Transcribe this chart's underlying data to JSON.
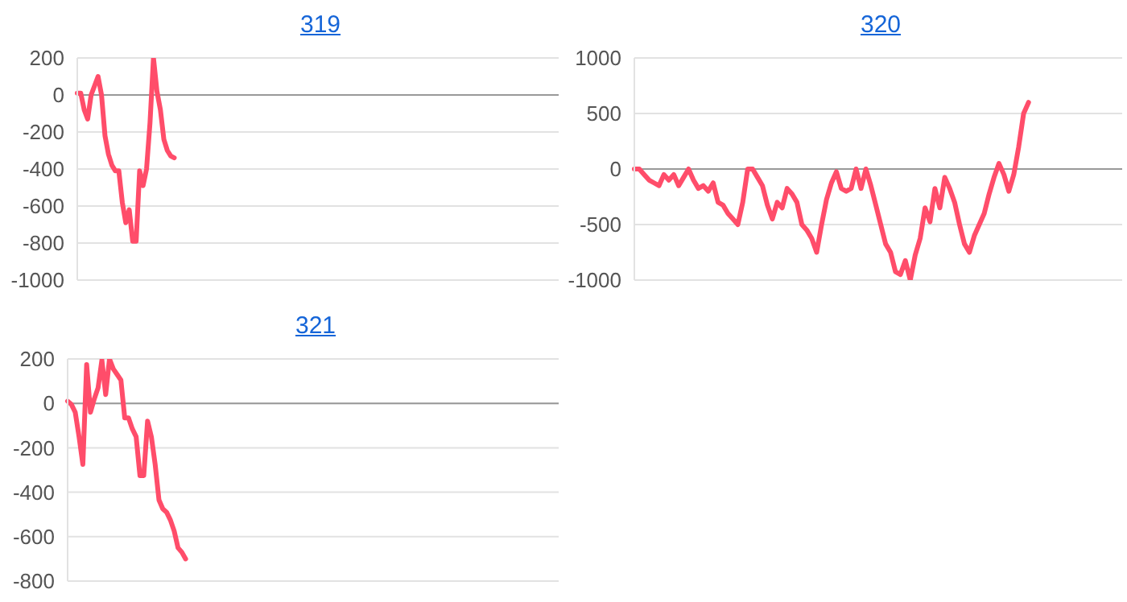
{
  "chart_data": [
    {
      "type": "line",
      "title": "319",
      "ylim": [
        -1000,
        200
      ],
      "yticks": [
        -1000,
        -800,
        -600,
        -400,
        -200,
        0,
        200
      ],
      "grid": "y",
      "tick_labels": "y",
      "legend": false,
      "marker": "none",
      "line_style": "solid",
      "ref_lines": [
        {
          "axis": "y",
          "value": 0,
          "color": "#999999"
        }
      ],
      "categories": [
        null,
        null,
        null,
        null,
        null,
        null,
        null,
        null,
        null,
        null,
        null,
        null,
        null,
        null,
        null,
        null,
        null,
        null,
        null,
        null,
        null,
        null,
        null,
        null,
        null,
        null,
        null,
        null,
        null,
        null,
        null,
        null,
        null,
        null,
        null,
        null,
        null,
        null,
        null,
        null,
        null,
        null,
        null,
        null,
        null,
        null,
        null,
        null,
        null,
        null,
        null,
        null,
        null,
        null,
        null,
        null,
        null,
        null,
        null,
        null,
        null,
        null,
        null,
        null,
        null,
        null,
        null,
        null,
        null,
        null,
        null,
        null,
        null,
        null,
        null,
        null,
        null,
        null,
        null,
        null,
        null,
        null,
        null,
        null,
        null,
        null,
        null,
        null,
        null,
        null,
        null,
        null,
        null,
        null,
        null,
        null,
        null,
        null,
        null,
        null,
        null,
        null,
        null,
        null,
        null,
        null,
        null,
        null,
        null,
        null,
        null,
        null,
        null,
        null,
        null,
        null,
        null,
        null,
        null,
        null,
        null,
        null,
        null,
        null,
        null,
        null,
        null,
        null,
        null,
        null,
        null,
        null,
        null,
        null,
        null,
        null,
        null,
        null,
        null,
        null
      ],
      "series": [
        {
          "color": "#ff4d6a",
          "values": [
            10,
            10,
            -80,
            -130,
            0,
            50,
            100,
            0,
            -220,
            -320,
            -380,
            -410,
            -410,
            -580,
            -690,
            -620,
            -790,
            -790,
            -410,
            -490,
            -400,
            -150,
            200,
            20,
            -80,
            -240,
            -300,
            -330,
            -340,
            null,
            null,
            null,
            null,
            null,
            null,
            null,
            null,
            null,
            null,
            null,
            null,
            null,
            null,
            null,
            null,
            null,
            null,
            null,
            null,
            null,
            null,
            null,
            null,
            null,
            null,
            null,
            null,
            null,
            null,
            null,
            null,
            null,
            null,
            null,
            null,
            null,
            null,
            null,
            null,
            null,
            null,
            null,
            null,
            null,
            null,
            null,
            null,
            null,
            null,
            null,
            null,
            null,
            null,
            null,
            null,
            null,
            null,
            null,
            null,
            null,
            null,
            null,
            null,
            null,
            null,
            null,
            null,
            null,
            null,
            null,
            null,
            null,
            null,
            null,
            null,
            null,
            null,
            null,
            null,
            null,
            null,
            null,
            null,
            null,
            null,
            null,
            null,
            null,
            null,
            null,
            null,
            null,
            null,
            null,
            null,
            null,
            null,
            null,
            null,
            null,
            null,
            null,
            null,
            null,
            null,
            null,
            null,
            null,
            null,
            null
          ]
        }
      ]
    },
    {
      "type": "line",
      "title": "320",
      "ylim": [
        -1000,
        1000
      ],
      "yticks": [
        -1000,
        -500,
        0,
        500,
        1000
      ],
      "grid": "y",
      "tick_labels": "y",
      "legend": false,
      "marker": "none",
      "line_style": "solid",
      "ref_lines": [
        {
          "axis": "y",
          "value": 0,
          "color": "#999999"
        }
      ],
      "categories": [
        null,
        null,
        null,
        null,
        null,
        null,
        null,
        null,
        null,
        null,
        null,
        null,
        null,
        null,
        null,
        null,
        null,
        null,
        null,
        null,
        null,
        null,
        null,
        null,
        null,
        null,
        null,
        null,
        null,
        null,
        null,
        null,
        null,
        null,
        null,
        null,
        null,
        null,
        null,
        null,
        null,
        null,
        null,
        null,
        null,
        null,
        null,
        null,
        null,
        null,
        null,
        null,
        null,
        null,
        null,
        null,
        null,
        null,
        null,
        null,
        null,
        null,
        null,
        null,
        null,
        null,
        null,
        null,
        null,
        null,
        null,
        null,
        null,
        null,
        null,
        null,
        null,
        null,
        null,
        null,
        null,
        null,
        null,
        null,
        null,
        null,
        null,
        null,
        null,
        null,
        null,
        null,
        null,
        null,
        null,
        null,
        null,
        null,
        null,
        null
      ],
      "series": [
        {
          "color": "#ff4d6a",
          "values": [
            0,
            0,
            -50,
            -100,
            -125,
            -150,
            -50,
            -100,
            -50,
            -150,
            -75,
            0,
            -100,
            -175,
            -150,
            -200,
            -125,
            -300,
            -325,
            -400,
            -450,
            -500,
            -300,
            0,
            0,
            -75,
            -150,
            -325,
            -450,
            -300,
            -350,
            -175,
            -225,
            -300,
            -500,
            -550,
            -625,
            -750,
            -500,
            -275,
            -125,
            -25,
            -175,
            -200,
            -175,
            0,
            -175,
            0,
            -150,
            -325,
            -500,
            -675,
            -750,
            -925,
            -950,
            -825,
            -1000,
            -775,
            -625,
            -350,
            -475,
            -175,
            -350,
            -75,
            -175,
            -300,
            -500,
            -675,
            -750,
            -600,
            -500,
            -400,
            -225,
            -75,
            50,
            -50,
            -200,
            -50,
            200,
            500,
            600,
            null,
            null,
            null,
            null,
            null,
            null,
            null,
            null,
            null,
            null,
            null,
            null,
            null,
            null,
            null,
            null,
            null,
            null,
            null
          ]
        }
      ]
    },
    {
      "type": "line",
      "title": "321",
      "ylim": [
        -800,
        200
      ],
      "yticks": [
        -800,
        -600,
        -400,
        -200,
        0,
        200
      ],
      "grid": "y",
      "tick_labels": "y",
      "legend": false,
      "marker": "none",
      "line_style": "solid",
      "ref_lines": [
        {
          "axis": "y",
          "value": 0,
          "color": "#999999"
        }
      ],
      "categories": [
        null,
        null,
        null,
        null,
        null,
        null,
        null,
        null,
        null,
        null,
        null,
        null,
        null,
        null,
        null,
        null,
        null,
        null,
        null,
        null,
        null,
        null,
        null,
        null,
        null,
        null,
        null,
        null,
        null,
        null,
        null,
        null,
        null,
        null,
        null,
        null,
        null,
        null,
        null,
        null,
        null,
        null,
        null,
        null,
        null,
        null,
        null,
        null,
        null,
        null,
        null,
        null,
        null,
        null,
        null,
        null,
        null,
        null,
        null,
        null,
        null,
        null,
        null,
        null,
        null,
        null,
        null,
        null,
        null,
        null,
        null,
        null,
        null,
        null,
        null,
        null,
        null,
        null,
        null,
        null,
        null,
        null,
        null,
        null,
        null,
        null,
        null,
        null,
        null,
        null,
        null,
        null,
        null,
        null,
        null,
        null,
        null,
        null,
        null,
        null,
        null,
        null,
        null,
        null,
        null,
        null,
        null,
        null,
        null,
        null,
        null,
        null,
        null,
        null,
        null,
        null,
        null,
        null,
        null,
        null,
        null,
        null,
        null,
        null,
        null,
        null,
        null,
        null,
        null,
        null
      ],
      "series": [
        {
          "color": "#ff4d6a",
          "values": [
            10,
            -5,
            -40,
            -150,
            -275,
            175,
            -40,
            20,
            70,
            195,
            40,
            200,
            155,
            130,
            105,
            -65,
            -65,
            -115,
            -150,
            -325,
            -325,
            -80,
            -150,
            -275,
            -435,
            -475,
            -490,
            -525,
            -575,
            -650,
            -670,
            -700,
            null,
            null,
            null,
            null,
            null,
            null,
            null,
            null,
            null,
            null,
            null,
            null,
            null,
            null,
            null,
            null,
            null,
            null,
            null,
            null,
            null,
            null,
            null,
            null,
            null,
            null,
            null,
            null,
            null,
            null,
            null,
            null,
            null,
            null,
            null,
            null,
            null,
            null,
            null,
            null,
            null,
            null,
            null,
            null,
            null,
            null,
            null,
            null,
            null,
            null,
            null,
            null,
            null,
            null,
            null,
            null,
            null,
            null,
            null,
            null,
            null,
            null,
            null,
            null,
            null,
            null,
            null,
            null,
            null,
            null,
            null,
            null,
            null,
            null,
            null,
            null,
            null,
            null,
            null,
            null,
            null,
            null,
            null,
            null,
            null,
            null,
            null,
            null,
            null,
            null,
            null,
            null,
            null,
            null,
            null,
            null,
            null,
            null
          ]
        }
      ]
    }
  ]
}
